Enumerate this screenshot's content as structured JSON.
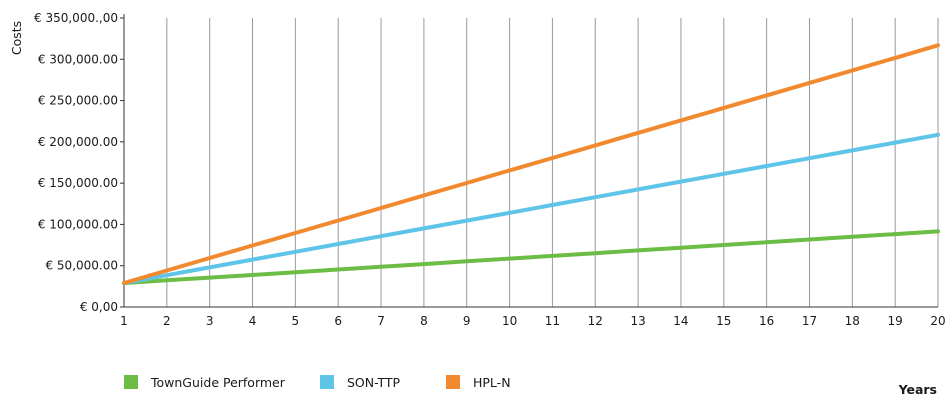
{
  "chart_data": {
    "type": "line",
    "ylabel": "Costs",
    "xlabel": "Years",
    "x": [
      1,
      2,
      3,
      4,
      5,
      6,
      7,
      8,
      9,
      10,
      11,
      12,
      13,
      14,
      15,
      16,
      17,
      18,
      19,
      20
    ],
    "xlim": [
      1,
      20
    ],
    "ylim": [
      0,
      350000
    ],
    "y_ticks": [
      {
        "value": 0,
        "label": "€ 0,00"
      },
      {
        "value": 50000,
        "label": "€ 50,000.00"
      },
      {
        "value": 100000,
        "label": "€ 100,000.00"
      },
      {
        "value": 150000,
        "label": "€ 150,000.00"
      },
      {
        "value": 200000,
        "label": "€ 200,000.00"
      },
      {
        "value": 250000,
        "label": "€ 250,000.00"
      },
      {
        "value": 300000,
        "label": "€ 300,000.00"
      },
      {
        "value": 350000,
        "label": "€ 350,000.,00"
      }
    ],
    "x_tick_labels": [
      "1",
      "2",
      "3",
      "4",
      "5",
      "6",
      "7",
      "8",
      "9",
      "10",
      "11",
      "12",
      "13",
      "14",
      "15",
      "16",
      "17",
      "18",
      "19",
      "20"
    ],
    "grid": {
      "vertical": true,
      "horizontal": false
    },
    "legend_position": "bottom-left",
    "series": [
      {
        "name": "TownGuide Performer",
        "color": "#6cbd45",
        "values": [
          29000,
          32300,
          35600,
          38800,
          42100,
          45400,
          48700,
          52000,
          55300,
          58600,
          61900,
          65200,
          68500,
          71800,
          75100,
          78400,
          81700,
          85000,
          88300,
          91600
        ]
      },
      {
        "name": "SON-TTP",
        "color": "#5ec4e8",
        "values": [
          29000,
          38500,
          47900,
          57400,
          66800,
          76300,
          85700,
          95200,
          104600,
          114100,
          123500,
          133000,
          142400,
          151900,
          161300,
          170800,
          180200,
          189700,
          199100,
          208600
        ]
      },
      {
        "name": "HPL-N",
        "color": "#f18a2f",
        "values": [
          29000,
          44200,
          59300,
          74500,
          89600,
          104800,
          119900,
          135100,
          150200,
          165400,
          180500,
          195700,
          210800,
          226000,
          241100,
          256300,
          271400,
          286600,
          301700,
          316900
        ]
      }
    ]
  }
}
